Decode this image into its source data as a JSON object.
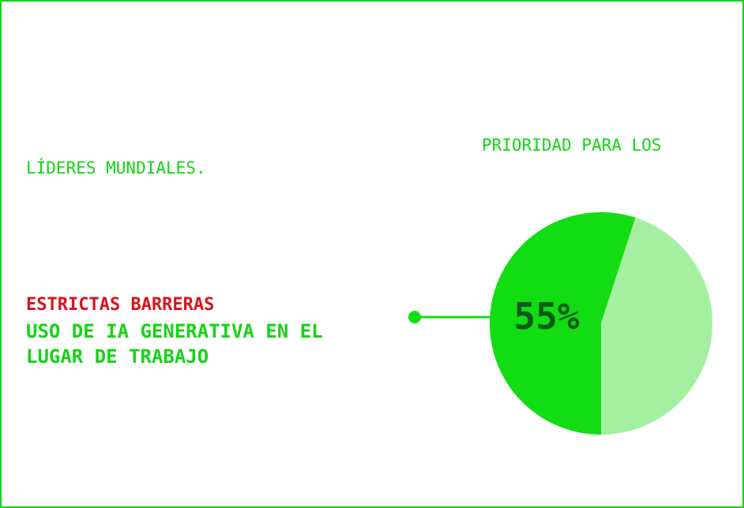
{
  "header": {
    "line1": "PRIORIDAD PARA LOS",
    "line2": "LÍDERES MUNDIALES."
  },
  "callout": {
    "barrier_label": "ESTRICTAS BARRERAS",
    "description_line1": "USO DE IA GENERATIVA EN EL",
    "description_line2": "LUGAR DE TRABAJO"
  },
  "colors": {
    "frame": "#14d414",
    "accent_red": "#d9131b",
    "slice_main": "#12dc12",
    "slice_rest": "#a4f0a0",
    "percent_text": "#0a5a1a"
  },
  "chart_data": {
    "type": "pie",
    "values": [
      55,
      45
    ],
    "label": "55%"
  }
}
